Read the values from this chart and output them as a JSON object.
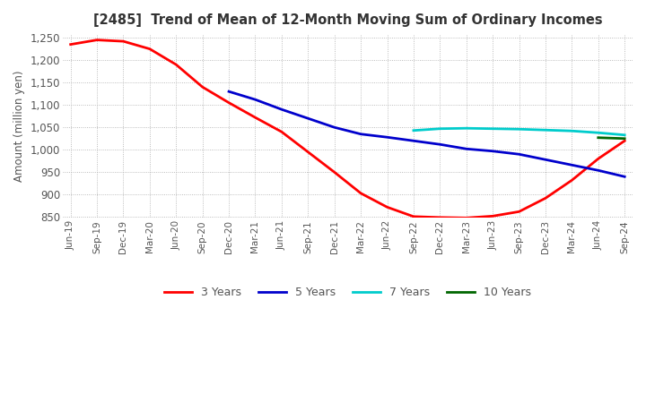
{
  "title": "[2485]  Trend of Mean of 12-Month Moving Sum of Ordinary Incomes",
  "ylabel": "Amount (million yen)",
  "ylim": [
    848,
    1258
  ],
  "yticks": [
    850,
    900,
    950,
    1000,
    1050,
    1100,
    1150,
    1200,
    1250
  ],
  "background_color": "#ffffff",
  "grid_color": "#aaaaaa",
  "x_labels": [
    "Jun-19",
    "Sep-19",
    "Dec-19",
    "Mar-20",
    "Jun-20",
    "Sep-20",
    "Dec-20",
    "Mar-21",
    "Jun-21",
    "Sep-21",
    "Dec-21",
    "Mar-22",
    "Jun-22",
    "Sep-22",
    "Dec-22",
    "Mar-23",
    "Jun-23",
    "Sep-23",
    "Dec-23",
    "Mar-24",
    "Jun-24",
    "Sep-24"
  ],
  "series": {
    "3 Years": {
      "color": "#ff0000",
      "values": [
        1235,
        1245,
        1242,
        1225,
        1190,
        1140,
        1105,
        1072,
        1040,
        995,
        950,
        903,
        872,
        851,
        849,
        848,
        852,
        862,
        892,
        932,
        980,
        1020
      ]
    },
    "5 Years": {
      "color": "#0000cc",
      "values": [
        null,
        null,
        null,
        null,
        null,
        null,
        1130,
        1112,
        1090,
        1070,
        1050,
        1035,
        1028,
        1020,
        1012,
        1002,
        997,
        990,
        978,
        966,
        954,
        940
      ]
    },
    "7 Years": {
      "color": "#00cccc",
      "values": [
        null,
        null,
        null,
        null,
        null,
        null,
        null,
        null,
        null,
        null,
        null,
        null,
        null,
        1043,
        1047,
        1048,
        1047,
        1046,
        1044,
        1042,
        1038,
        1033
      ]
    },
    "10 Years": {
      "color": "#006600",
      "values": [
        null,
        null,
        null,
        null,
        null,
        null,
        null,
        null,
        null,
        null,
        null,
        null,
        null,
        null,
        null,
        null,
        null,
        null,
        null,
        null,
        1027,
        1025
      ]
    }
  }
}
